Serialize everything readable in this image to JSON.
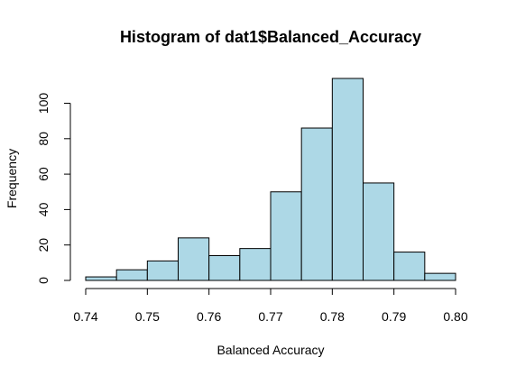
{
  "chart_data": {
    "type": "bar",
    "title": "Histogram of dat1$Balanced_Accuracy",
    "xlabel": "Balanced Accuracy",
    "ylabel": "Frequency",
    "bins": [
      {
        "start": 0.74,
        "end": 0.745,
        "count": 2
      },
      {
        "start": 0.745,
        "end": 0.75,
        "count": 6
      },
      {
        "start": 0.75,
        "end": 0.755,
        "count": 11
      },
      {
        "start": 0.755,
        "end": 0.76,
        "count": 24
      },
      {
        "start": 0.76,
        "end": 0.765,
        "count": 14
      },
      {
        "start": 0.765,
        "end": 0.77,
        "count": 18
      },
      {
        "start": 0.77,
        "end": 0.775,
        "count": 50
      },
      {
        "start": 0.775,
        "end": 0.78,
        "count": 86
      },
      {
        "start": 0.78,
        "end": 0.785,
        "count": 114
      },
      {
        "start": 0.785,
        "end": 0.79,
        "count": 55
      },
      {
        "start": 0.79,
        "end": 0.795,
        "count": 16
      },
      {
        "start": 0.795,
        "end": 0.8,
        "count": 4
      }
    ],
    "xlim": [
      0.74,
      0.8
    ],
    "ylim": [
      0,
      114
    ],
    "x_ticks": [
      0.74,
      0.75,
      0.76,
      0.77,
      0.78,
      0.79,
      0.8
    ],
    "x_tick_labels": [
      "0.74",
      "0.75",
      "0.76",
      "0.77",
      "0.78",
      "0.79",
      "0.80"
    ],
    "y_ticks": [
      0,
      20,
      40,
      60,
      80,
      100
    ],
    "y_tick_labels": [
      "0",
      "20",
      "40",
      "60",
      "80",
      "100"
    ],
    "grid": false,
    "colors": {
      "bar_fill": "#add8e6",
      "bar_stroke": "#000000",
      "axis": "#000000",
      "background": "#ffffff"
    }
  }
}
